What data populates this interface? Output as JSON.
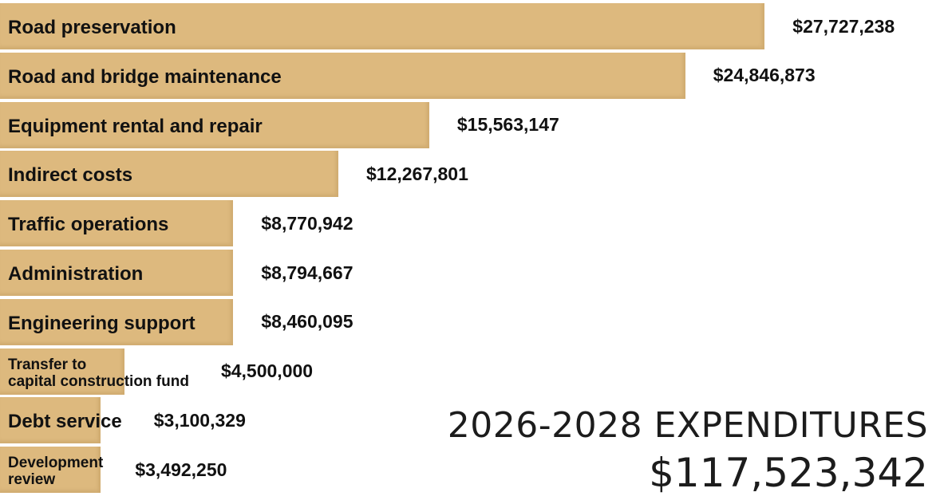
{
  "chart_data": {
    "type": "bar",
    "orientation": "horizontal",
    "categories": [
      "Road preservation",
      "Road and bridge maintenance",
      "Equipment rental and repair",
      "Indirect costs",
      "Traffic operations",
      "Administration",
      "Engineering support",
      "Transfer to\ncapital construction fund",
      "Debt service",
      "Development\nreview"
    ],
    "values": [
      27727238,
      24846873,
      15563147,
      12267801,
      8770942,
      8794667,
      8460095,
      4500000,
      3100329,
      3492250
    ],
    "value_labels": [
      "$27,727,238",
      "$24,846,873",
      "$15,563,147",
      "$12,267,801",
      "$8,770,942",
      "$8,794,667",
      "$8,460,095",
      "$4,500,000",
      "$3,100,329",
      "$3,492,250"
    ],
    "xlim": [
      0,
      28500000
    ],
    "grid": false,
    "legend": "none"
  },
  "summary": {
    "title": "2026-2028 EXPENDITURES",
    "total": "$117,523,342"
  },
  "colors": {
    "bar": "#ddb97e",
    "text": "#111111"
  }
}
